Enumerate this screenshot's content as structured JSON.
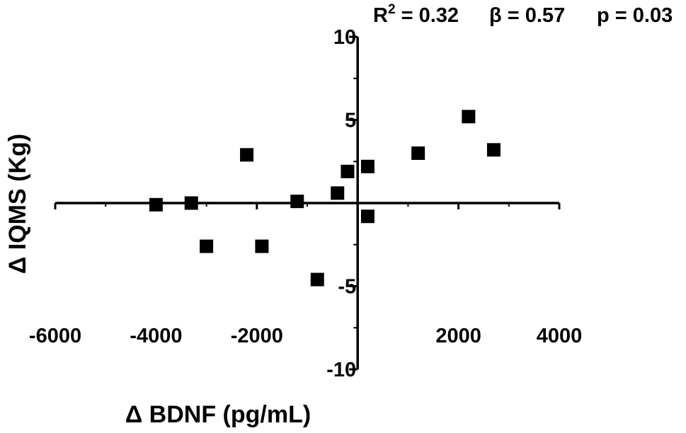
{
  "chart_data": {
    "type": "scatter",
    "xlabel": "Δ BDNF (pg/mL)",
    "ylabel": "Δ IQMS (Kg)",
    "xlim": [
      -6000,
      4000
    ],
    "ylim": [
      -10,
      10
    ],
    "x_ticks": [
      -6000,
      -4000,
      -2000,
      2000,
      4000
    ],
    "x_tick_labels": [
      "-6000",
      "-4000",
      "-2000",
      "2000",
      "4000"
    ],
    "y_ticks": [
      10,
      5,
      -5,
      -10
    ],
    "y_tick_labels": [
      "10",
      "5",
      "-5",
      "-10"
    ],
    "stats": {
      "r2_label": "R",
      "r2_sup": "2",
      "r2_value": " = 0.32",
      "beta": "β = 0.57",
      "p": "p = 0.03"
    },
    "grid": false,
    "marker": "square",
    "marker_color": "#000000",
    "points": [
      {
        "x": -4000,
        "y": -0.1
      },
      {
        "x": -3300,
        "y": 0.0
      },
      {
        "x": -3000,
        "y": -2.6
      },
      {
        "x": -2200,
        "y": 2.9
      },
      {
        "x": -1900,
        "y": -2.6
      },
      {
        "x": -1200,
        "y": 0.1
      },
      {
        "x": -800,
        "y": -4.6
      },
      {
        "x": -400,
        "y": 0.6
      },
      {
        "x": -200,
        "y": 1.9
      },
      {
        "x": 200,
        "y": 2.2
      },
      {
        "x": 200,
        "y": -0.8
      },
      {
        "x": 1200,
        "y": 3.0
      },
      {
        "x": 2200,
        "y": 5.2
      },
      {
        "x": 2700,
        "y": 3.2
      }
    ]
  }
}
